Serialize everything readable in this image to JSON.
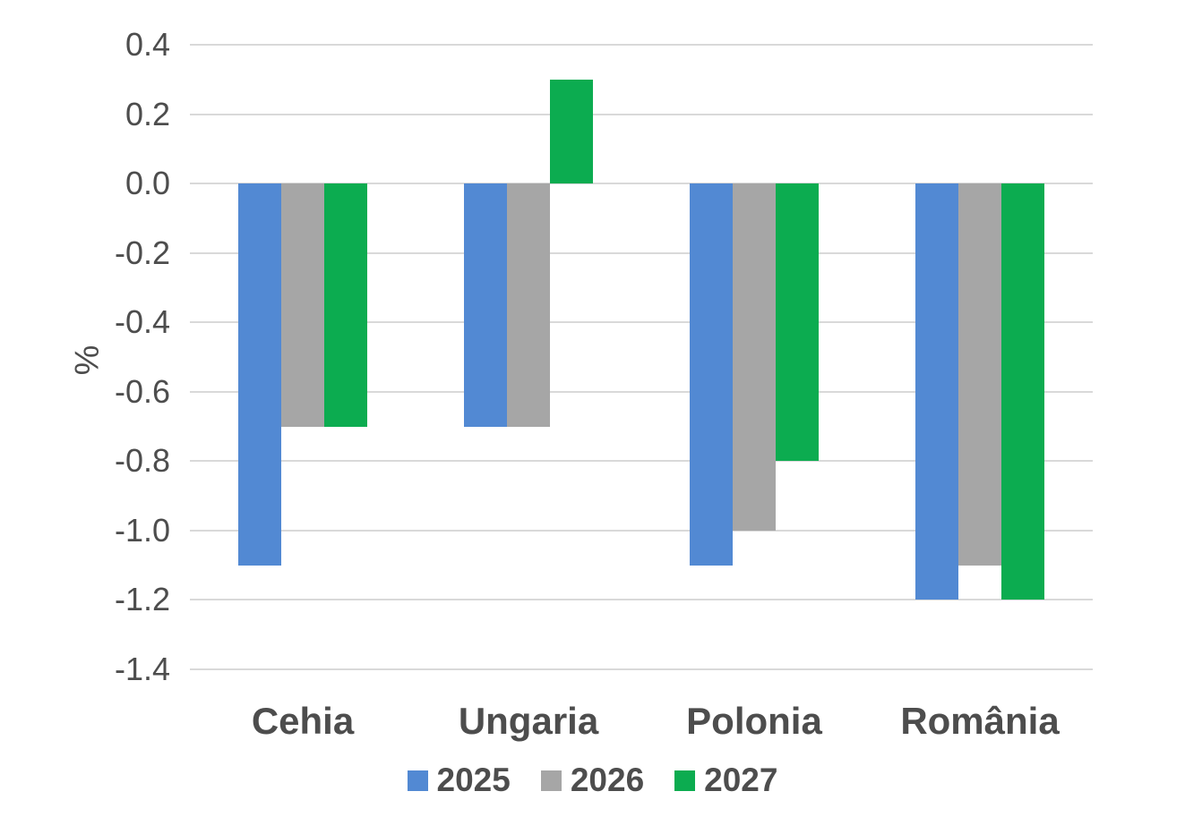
{
  "chart_data": {
    "type": "bar",
    "title": "",
    "ylabel": "%",
    "xlabel": "",
    "categories": [
      "Cehia",
      "Ungaria",
      "Polonia",
      "România"
    ],
    "series": [
      {
        "name": "2025",
        "color": "#5289d3",
        "values": [
          -1.1,
          -0.7,
          -1.1,
          -1.2
        ]
      },
      {
        "name": "2026",
        "color": "#a6a6a6",
        "values": [
          -0.7,
          -0.7,
          -1.0,
          -1.1
        ]
      },
      {
        "name": "2027",
        "color": "#0cac50",
        "values": [
          -0.7,
          0.3,
          -0.8,
          -1.2
        ]
      }
    ],
    "ylim": [
      -1.4,
      0.4
    ],
    "yticks": [
      0.4,
      0.2,
      0.0,
      -0.2,
      -0.4,
      -0.6,
      -0.8,
      -1.0,
      -1.2,
      -1.4
    ],
    "grid": true,
    "legend_position": "bottom",
    "colors": {
      "gridline": "#d9d9d9",
      "axis_text": "#4d4d4d",
      "background": "#ffffff"
    }
  }
}
